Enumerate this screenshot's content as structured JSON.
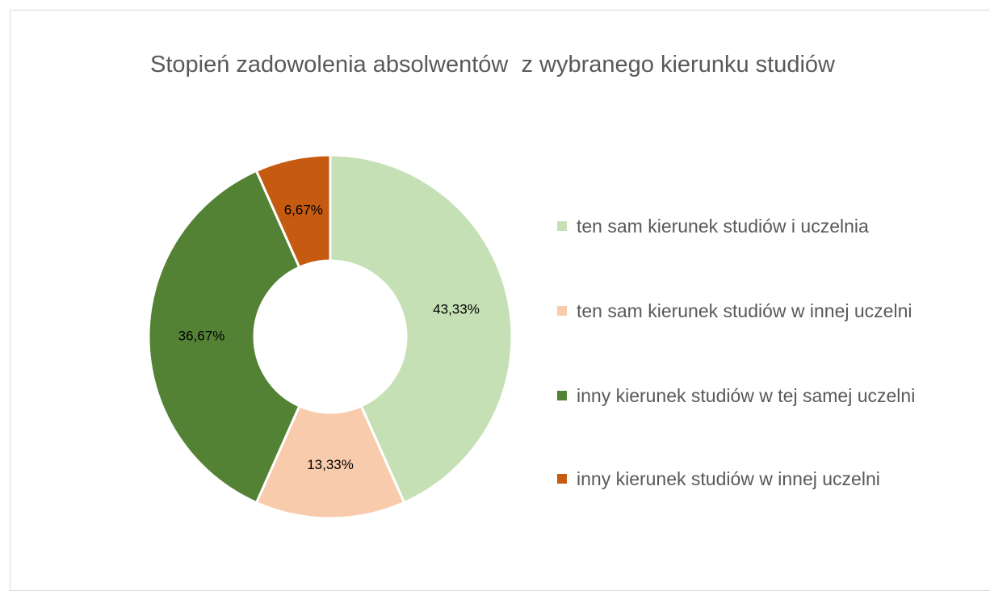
{
  "chart_data": {
    "type": "donut",
    "title": "Stopień zadowolenia absolwentów  z wybranego kierunku studiów",
    "categories": [
      "ten sam kierunek studiów i uczelnia",
      "ten sam kierunek studiów w innej uczelni",
      "inny kierunek studiów w tej samej uczelni",
      "inny kierunek studiów w innej uczelni"
    ],
    "values": [
      43.33,
      13.33,
      36.67,
      6.67
    ],
    "value_labels": [
      "43,33%",
      "13,33%",
      "36,67%",
      "6,67%"
    ],
    "colors": [
      "#c5e0b4",
      "#f8cbad",
      "#548235",
      "#c55a11"
    ],
    "legend": "right"
  }
}
